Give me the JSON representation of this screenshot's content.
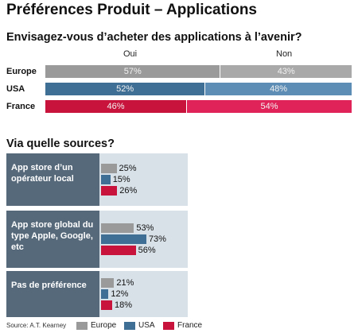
{
  "title": "Préférences Produit – Applications",
  "colors": {
    "europe": "#9a9a9a",
    "usa": "#3f6f95",
    "france": "#c8143c",
    "label_panel": "#56697a",
    "panel_bg": "#d8e1e8"
  },
  "chart_data": [
    {
      "type": "bar",
      "stacked": true,
      "orientation": "horizontal",
      "title": "Envisagez-vous d’acheter des applications à l’avenir?",
      "columns": [
        "Oui",
        "Non"
      ],
      "categories": [
        "Europe",
        "USA",
        "France"
      ],
      "series": [
        {
          "name": "Oui",
          "values": [
            57,
            52,
            46
          ],
          "labels": [
            "57%",
            "52%",
            "46%"
          ]
        },
        {
          "name": "Non",
          "values": [
            43,
            48,
            54
          ],
          "labels": [
            "43%",
            "48%",
            "54%"
          ]
        }
      ],
      "xlim": [
        0,
        100
      ]
    },
    {
      "type": "bar",
      "orientation": "horizontal",
      "title": "Via quelle sources?",
      "categories": [
        "App store d’un opérateur local",
        "App store global du type Apple, Google, etc",
        "Pas de préférence"
      ],
      "series": [
        {
          "name": "Europe",
          "values": [
            25,
            53,
            21
          ],
          "labels": [
            "25%",
            "53%",
            "21%"
          ]
        },
        {
          "name": "USA",
          "values": [
            15,
            73,
            12
          ],
          "labels": [
            "15%",
            "73%",
            "12%"
          ]
        },
        {
          "name": "France",
          "values": [
            26,
            56,
            18
          ],
          "labels": [
            "26%",
            "56%",
            "18%"
          ]
        }
      ],
      "legend": [
        "Europe",
        "USA",
        "France"
      ],
      "legend_position": "bottom"
    }
  ],
  "source": "Source: A.T. Kearney"
}
